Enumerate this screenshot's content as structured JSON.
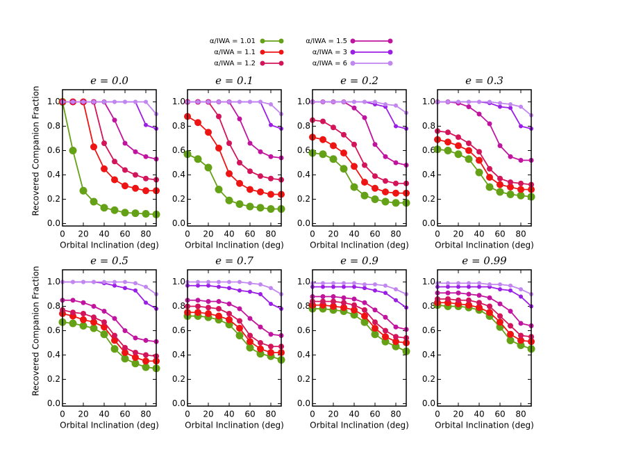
{
  "legend": [
    {
      "name": "α/IWA = 1.01",
      "color": "#65a116"
    },
    {
      "name": "α/IWA = 1.1",
      "color": "#ee1414"
    },
    {
      "name": "α/IWA = 1.2",
      "color": "#d3145a"
    },
    {
      "name": "α/IWA = 1.5",
      "color": "#c0149f"
    },
    {
      "name": "α/IWA = 3",
      "color": "#9b1ee6"
    },
    {
      "name": "α/IWA = 6",
      "color": "#c286f0"
    }
  ],
  "chart_data": [
    {
      "type": "line",
      "title": "e = 0.0",
      "xlabel": "Orbital Inclination (deg)",
      "ylabel": "Recovered Companion Fraction",
      "x": [
        0,
        10,
        20,
        30,
        40,
        50,
        60,
        70,
        80,
        90
      ],
      "xlim": [
        0,
        90
      ],
      "xticks": [
        0,
        20,
        40,
        60,
        80
      ],
      "ylim": [
        -0.02,
        1.1
      ],
      "yticks": [
        {
          "value": 0,
          "label": "0.0"
        },
        0.2,
        0.4,
        0.6,
        0.8,
        {
          "value": 1,
          "label": "1.0"
        }
      ],
      "series": [
        {
          "values": [
            1.0,
            0.6,
            0.27,
            0.18,
            0.13,
            0.11,
            0.09,
            0.085,
            0.08,
            0.075
          ]
        },
        {
          "values": [
            1.0,
            1.0,
            1.0,
            0.63,
            0.45,
            0.36,
            0.31,
            0.29,
            0.27,
            0.27
          ]
        },
        {
          "values": [
            1.0,
            1.0,
            1.0,
            1.0,
            0.66,
            0.51,
            0.44,
            0.4,
            0.37,
            0.36
          ]
        },
        {
          "values": [
            1.0,
            1.0,
            1.0,
            1.0,
            1.0,
            0.85,
            0.66,
            0.59,
            0.55,
            0.53
          ]
        },
        {
          "values": [
            1.0,
            1.0,
            1.0,
            1.0,
            1.0,
            1.0,
            1.0,
            1.0,
            0.81,
            0.78
          ]
        },
        {
          "values": [
            1.0,
            1.0,
            1.0,
            1.0,
            1.0,
            1.0,
            1.0,
            1.0,
            1.0,
            0.9
          ]
        }
      ]
    },
    {
      "type": "line",
      "title": "e = 0.1",
      "xlabel": "Orbital Inclination (deg)",
      "x": [
        0,
        10,
        20,
        30,
        40,
        50,
        60,
        70,
        80,
        90
      ],
      "xlim": [
        0,
        90
      ],
      "xticks": [
        0,
        20,
        40,
        60,
        80
      ],
      "ylim": [
        -0.02,
        1.1
      ],
      "yticks": [
        {
          "value": 0,
          "label": "0.0"
        },
        0.2,
        0.4,
        0.6,
        0.8,
        {
          "value": 1,
          "label": "1.0"
        }
      ],
      "series": [
        {
          "values": [
            0.57,
            0.53,
            0.46,
            0.28,
            0.19,
            0.16,
            0.14,
            0.13,
            0.12,
            0.12
          ]
        },
        {
          "values": [
            0.88,
            0.83,
            0.75,
            0.62,
            0.41,
            0.33,
            0.28,
            0.26,
            0.24,
            0.24
          ]
        },
        {
          "values": [
            1.0,
            1.0,
            1.0,
            0.88,
            0.66,
            0.5,
            0.43,
            0.39,
            0.37,
            0.36
          ]
        },
        {
          "values": [
            1.0,
            1.0,
            1.0,
            1.0,
            1.0,
            0.86,
            0.66,
            0.59,
            0.55,
            0.54
          ]
        },
        {
          "values": [
            1.0,
            1.0,
            1.0,
            1.0,
            1.0,
            1.0,
            1.0,
            1.0,
            0.81,
            0.78
          ]
        },
        {
          "values": [
            1.0,
            1.0,
            1.0,
            1.0,
            1.0,
            1.0,
            1.0,
            1.0,
            0.98,
            0.9
          ]
        }
      ]
    },
    {
      "type": "line",
      "title": "e = 0.2",
      "xlabel": "Orbital Inclination (deg)",
      "x": [
        0,
        10,
        20,
        30,
        40,
        50,
        60,
        70,
        80,
        90
      ],
      "xlim": [
        0,
        90
      ],
      "xticks": [
        0,
        20,
        40,
        60,
        80
      ],
      "ylim": [
        -0.02,
        1.1
      ],
      "yticks": [
        {
          "value": 0,
          "label": "0.0"
        },
        0.2,
        0.4,
        0.6,
        0.8,
        {
          "value": 1,
          "label": "1.0"
        }
      ],
      "series": [
        {
          "values": [
            0.58,
            0.57,
            0.53,
            0.45,
            0.3,
            0.23,
            0.2,
            0.18,
            0.17,
            0.17
          ]
        },
        {
          "values": [
            0.71,
            0.69,
            0.64,
            0.58,
            0.47,
            0.34,
            0.29,
            0.26,
            0.25,
            0.25
          ]
        },
        {
          "values": [
            0.85,
            0.84,
            0.79,
            0.73,
            0.65,
            0.48,
            0.39,
            0.35,
            0.33,
            0.33
          ]
        },
        {
          "values": [
            1.0,
            1.0,
            1.0,
            1.0,
            0.95,
            0.87,
            0.65,
            0.55,
            0.5,
            0.48
          ]
        },
        {
          "values": [
            1.0,
            1.0,
            1.0,
            1.0,
            1.0,
            1.0,
            0.98,
            0.96,
            0.8,
            0.78
          ]
        },
        {
          "values": [
            1.0,
            1.0,
            1.0,
            1.0,
            1.0,
            1.0,
            1.0,
            0.98,
            0.97,
            0.91
          ]
        }
      ]
    },
    {
      "type": "line",
      "title": "e = 0.3",
      "xlabel": "Orbital Inclination (deg)",
      "x": [
        0,
        10,
        20,
        30,
        40,
        50,
        60,
        70,
        80,
        90
      ],
      "xlim": [
        0,
        90
      ],
      "xticks": [
        0,
        20,
        40,
        60,
        80
      ],
      "ylim": [
        -0.02,
        1.1
      ],
      "yticks": [
        {
          "value": 0,
          "label": "0.0"
        },
        0.2,
        0.4,
        0.6,
        0.8,
        {
          "value": 1,
          "label": "1.0"
        }
      ],
      "series": [
        {
          "values": [
            0.61,
            0.6,
            0.57,
            0.53,
            0.42,
            0.3,
            0.26,
            0.24,
            0.23,
            0.22
          ]
        },
        {
          "values": [
            0.69,
            0.67,
            0.64,
            0.6,
            0.52,
            0.38,
            0.32,
            0.3,
            0.28,
            0.28
          ]
        },
        {
          "values": [
            0.76,
            0.75,
            0.71,
            0.66,
            0.59,
            0.45,
            0.37,
            0.34,
            0.33,
            0.32
          ]
        },
        {
          "values": [
            1.0,
            1.0,
            0.99,
            0.96,
            0.9,
            0.82,
            0.64,
            0.55,
            0.52,
            0.52
          ]
        },
        {
          "values": [
            1.0,
            1.0,
            1.0,
            1.0,
            1.0,
            0.99,
            0.96,
            0.95,
            0.8,
            0.78
          ]
        },
        {
          "values": [
            1.0,
            1.0,
            1.0,
            1.0,
            1.0,
            1.0,
            0.99,
            0.98,
            0.96,
            0.89
          ]
        }
      ]
    },
    {
      "type": "line",
      "title": "e = 0.5",
      "xlabel": "Orbital Inclination (deg)",
      "ylabel": "Recovered Companion Fraction",
      "x": [
        0,
        10,
        20,
        30,
        40,
        50,
        60,
        70,
        80,
        90
      ],
      "xlim": [
        0,
        90
      ],
      "xticks": [
        0,
        20,
        40,
        60,
        80
      ],
      "ylim": [
        -0.02,
        1.1
      ],
      "yticks": [
        {
          "value": 0,
          "label": "0.0"
        },
        0.2,
        0.4,
        0.6,
        0.8,
        {
          "value": 1,
          "label": "1.0"
        }
      ],
      "series": [
        {
          "values": [
            0.67,
            0.66,
            0.64,
            0.62,
            0.57,
            0.45,
            0.37,
            0.33,
            0.3,
            0.29
          ]
        },
        {
          "values": [
            0.74,
            0.72,
            0.69,
            0.67,
            0.63,
            0.52,
            0.42,
            0.38,
            0.35,
            0.35
          ]
        },
        {
          "values": [
            0.77,
            0.75,
            0.74,
            0.71,
            0.67,
            0.56,
            0.46,
            0.42,
            0.4,
            0.39
          ]
        },
        {
          "values": [
            0.85,
            0.85,
            0.83,
            0.8,
            0.76,
            0.7,
            0.6,
            0.54,
            0.52,
            0.51
          ]
        },
        {
          "values": [
            1.0,
            1.0,
            1.0,
            1.0,
            0.99,
            0.97,
            0.95,
            0.93,
            0.83,
            0.78
          ]
        },
        {
          "values": [
            1.0,
            1.0,
            1.0,
            1.0,
            1.0,
            1.0,
            1.0,
            0.99,
            0.96,
            0.9
          ]
        }
      ]
    },
    {
      "type": "line",
      "title": "e = 0.7",
      "xlabel": "Orbital Inclination (deg)",
      "x": [
        0,
        10,
        20,
        30,
        40,
        50,
        60,
        70,
        80,
        90
      ],
      "xlim": [
        0,
        90
      ],
      "xticks": [
        0,
        20,
        40,
        60,
        80
      ],
      "ylim": [
        -0.02,
        1.1
      ],
      "yticks": [
        {
          "value": 0,
          "label": "0.0"
        },
        0.2,
        0.4,
        0.6,
        0.8,
        {
          "value": 1,
          "label": "1.0"
        }
      ],
      "series": [
        {
          "values": [
            0.72,
            0.72,
            0.71,
            0.69,
            0.65,
            0.56,
            0.46,
            0.41,
            0.39,
            0.36
          ]
        },
        {
          "values": [
            0.75,
            0.75,
            0.74,
            0.72,
            0.69,
            0.62,
            0.51,
            0.45,
            0.42,
            0.42
          ]
        },
        {
          "values": [
            0.8,
            0.8,
            0.79,
            0.78,
            0.74,
            0.68,
            0.56,
            0.5,
            0.47,
            0.47
          ]
        },
        {
          "values": [
            0.85,
            0.85,
            0.84,
            0.84,
            0.82,
            0.78,
            0.7,
            0.63,
            0.57,
            0.56
          ]
        },
        {
          "values": [
            0.97,
            0.97,
            0.97,
            0.96,
            0.95,
            0.93,
            0.92,
            0.9,
            0.82,
            0.78
          ]
        },
        {
          "values": [
            1.0,
            1.0,
            1.0,
            1.0,
            1.0,
            1.0,
            0.99,
            0.98,
            0.95,
            0.9
          ]
        }
      ]
    },
    {
      "type": "line",
      "title": "e = 0.9",
      "xlabel": "Orbital Inclination (deg)",
      "x": [
        0,
        10,
        20,
        30,
        40,
        50,
        60,
        70,
        80,
        90
      ],
      "xlim": [
        0,
        90
      ],
      "xticks": [
        0,
        20,
        40,
        60,
        80
      ],
      "ylim": [
        -0.02,
        1.1
      ],
      "yticks": [
        {
          "value": 0,
          "label": "0.0"
        },
        0.2,
        0.4,
        0.6,
        0.8,
        {
          "value": 1,
          "label": "1.0"
        }
      ],
      "series": [
        {
          "values": [
            0.78,
            0.78,
            0.77,
            0.76,
            0.73,
            0.67,
            0.57,
            0.51,
            0.47,
            0.43
          ]
        },
        {
          "values": [
            0.81,
            0.81,
            0.8,
            0.79,
            0.77,
            0.72,
            0.62,
            0.55,
            0.51,
            0.5
          ]
        },
        {
          "values": [
            0.84,
            0.84,
            0.84,
            0.83,
            0.81,
            0.77,
            0.67,
            0.6,
            0.55,
            0.54
          ]
        },
        {
          "values": [
            0.88,
            0.88,
            0.88,
            0.87,
            0.86,
            0.83,
            0.77,
            0.71,
            0.63,
            0.61
          ]
        },
        {
          "values": [
            0.96,
            0.96,
            0.96,
            0.96,
            0.96,
            0.95,
            0.93,
            0.91,
            0.85,
            0.79
          ]
        },
        {
          "values": [
            0.99,
            0.99,
            0.99,
            0.99,
            0.99,
            0.98,
            0.98,
            0.97,
            0.94,
            0.9
          ]
        }
      ]
    },
    {
      "type": "line",
      "title": "e = 0.99",
      "xlabel": "Orbital Inclination (deg)",
      "x": [
        0,
        10,
        20,
        30,
        40,
        50,
        60,
        70,
        80,
        90
      ],
      "xlim": [
        0,
        90
      ],
      "xticks": [
        0,
        20,
        40,
        60,
        80
      ],
      "ylim": [
        -0.02,
        1.1
      ],
      "yticks": [
        {
          "value": 0,
          "label": "0.0"
        },
        0.2,
        0.4,
        0.6,
        0.8,
        {
          "value": 1,
          "label": "1.0"
        }
      ],
      "series": [
        {
          "values": [
            0.81,
            0.8,
            0.8,
            0.79,
            0.77,
            0.72,
            0.63,
            0.52,
            0.48,
            0.45
          ]
        },
        {
          "values": [
            0.83,
            0.83,
            0.82,
            0.81,
            0.79,
            0.75,
            0.67,
            0.57,
            0.52,
            0.51
          ]
        },
        {
          "values": [
            0.86,
            0.86,
            0.85,
            0.85,
            0.83,
            0.8,
            0.72,
            0.64,
            0.56,
            0.55
          ]
        },
        {
          "values": [
            0.91,
            0.91,
            0.91,
            0.9,
            0.89,
            0.87,
            0.82,
            0.76,
            0.66,
            0.64
          ]
        },
        {
          "values": [
            0.96,
            0.96,
            0.96,
            0.96,
            0.96,
            0.96,
            0.94,
            0.93,
            0.88,
            0.8
          ]
        },
        {
          "values": [
            0.99,
            0.99,
            0.99,
            0.99,
            0.99,
            0.98,
            0.98,
            0.97,
            0.94,
            0.9
          ]
        }
      ]
    }
  ]
}
